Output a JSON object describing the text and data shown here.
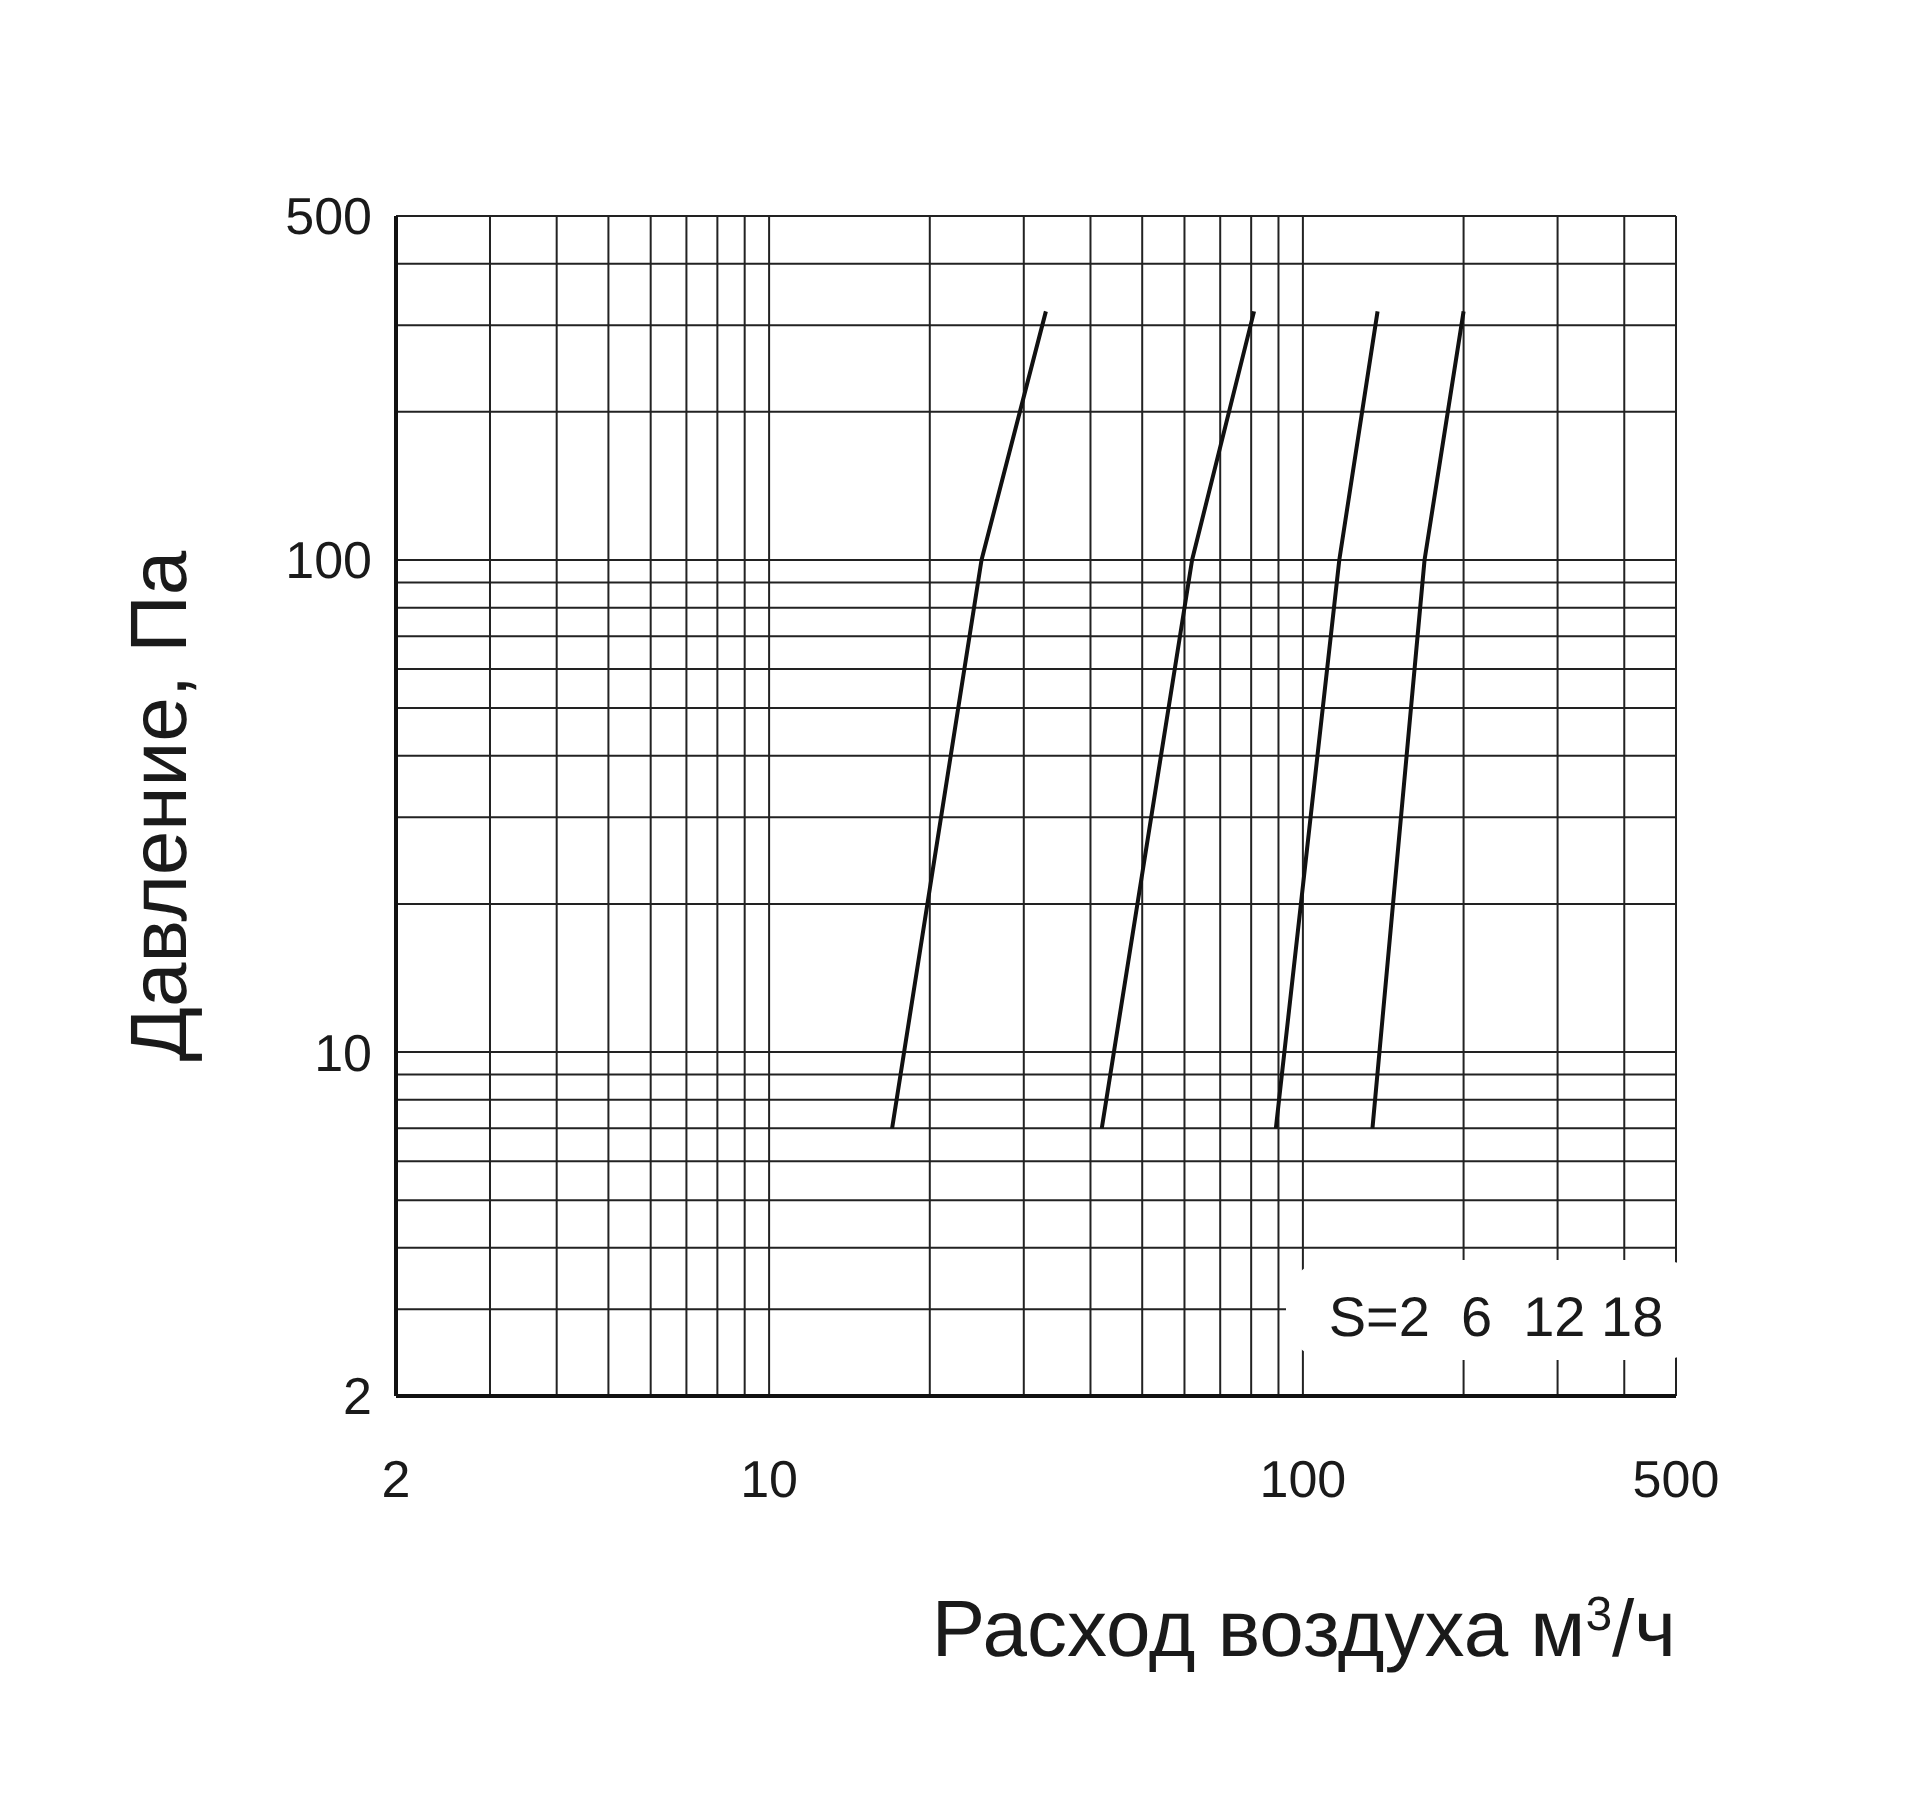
{
  "chart_data": {
    "type": "line",
    "xlabel": "Расход воздуха м$^{3}$/ч",
    "ylabel": "Давление, Па",
    "log": "xy",
    "xlim": [
      2,
      500
    ],
    "ylim": [
      2,
      500
    ],
    "xticks": [
      2,
      {
        "value": 3,
        "label": null
      },
      {
        "value": 4,
        "label": null
      },
      {
        "value": 5,
        "label": null
      },
      {
        "value": 6,
        "label": null
      },
      {
        "value": 7,
        "label": null
      },
      {
        "value": 8,
        "label": null
      },
      {
        "value": 9,
        "label": null
      },
      10,
      {
        "value": 20,
        "label": null
      },
      {
        "value": 30,
        "label": null
      },
      {
        "value": 40,
        "label": null
      },
      {
        "value": 50,
        "label": null
      },
      {
        "value": 60,
        "label": null
      },
      {
        "value": 70,
        "label": null
      },
      {
        "value": 80,
        "label": null
      },
      {
        "value": 90,
        "label": null
      },
      100,
      {
        "value": 200,
        "label": null
      },
      {
        "value": 300,
        "label": null
      },
      {
        "value": 400,
        "label": null
      },
      500
    ],
    "yticks": [
      2,
      {
        "value": 3,
        "label": null
      },
      {
        "value": 4,
        "label": null
      },
      {
        "value": 5,
        "label": null
      },
      {
        "value": 6,
        "label": null
      },
      {
        "value": 7,
        "label": null
      },
      {
        "value": 8,
        "label": null
      },
      {
        "value": 9,
        "label": null
      },
      10,
      {
        "value": 20,
        "label": null
      },
      {
        "value": 30,
        "label": null
      },
      {
        "value": 40,
        "label": null
      },
      {
        "value": 50,
        "label": null
      },
      {
        "value": 60,
        "label": null
      },
      {
        "value": 70,
        "label": null
      },
      {
        "value": 80,
        "label": null
      },
      {
        "value": 90,
        "label": null
      },
      100,
      {
        "value": 200,
        "label": null
      },
      {
        "value": 300,
        "label": null
      },
      {
        "value": 400,
        "label": null
      },
      500
    ],
    "grid": true,
    "marker": "none",
    "line_style": "solid",
    "series": [
      {
        "color": "#111111",
        "x": [
          17,
          25,
          33
        ],
        "values": [
          7,
          100,
          320
        ]
      },
      {
        "color": "#111111",
        "x": [
          42,
          62,
          81
        ],
        "values": [
          7,
          100,
          320
        ]
      },
      {
        "color": "#111111",
        "x": [
          89,
          117,
          138
        ],
        "values": [
          7,
          100,
          320
        ]
      },
      {
        "color": "#111111",
        "x": [
          135,
          169,
          200
        ],
        "values": [
          7,
          100,
          320
        ]
      }
    ],
    "annotations": [
      "S=2  6  12 18"
    ]
  }
}
